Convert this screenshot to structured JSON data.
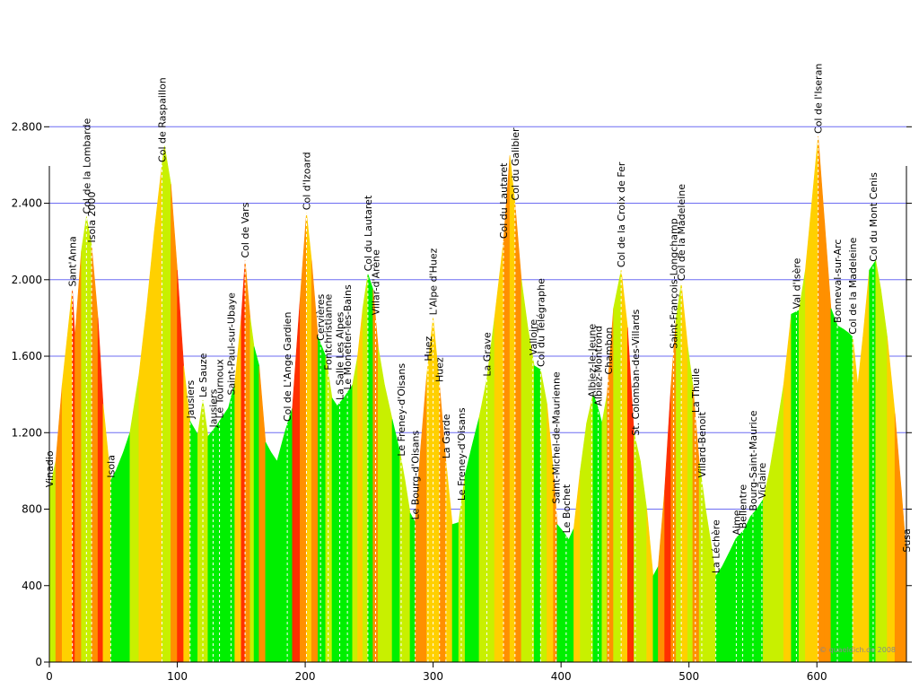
{
  "chart_data": {
    "type": "area",
    "xlim": [
      0,
      670
    ],
    "ylim": [
      0,
      2900
    ],
    "y_ticks": [
      0,
      400,
      800,
      1200,
      1600,
      2000,
      2400,
      2800
    ],
    "y_tick_labels": [
      "0",
      "400",
      "800",
      "1.200",
      "1.600",
      "2.000",
      "2.400",
      "2.800"
    ],
    "x_ticks": [
      0,
      100,
      200,
      300,
      400,
      500,
      600
    ],
    "x_tick_labels": [
      "0",
      "100",
      "200",
      "300",
      "400",
      "500",
      "600"
    ],
    "grid": "horizontal",
    "profile": [
      [
        0,
        900
      ],
      [
        5,
        1050
      ],
      [
        10,
        1450
      ],
      [
        14,
        1700
      ],
      [
        18,
        1950
      ],
      [
        20,
        1700
      ],
      [
        25,
        2150
      ],
      [
        29,
        2330
      ],
      [
        33,
        2180
      ],
      [
        38,
        1800
      ],
      [
        42,
        1350
      ],
      [
        48,
        950
      ],
      [
        52,
        1000
      ],
      [
        58,
        1100
      ],
      [
        63,
        1200
      ],
      [
        70,
        1500
      ],
      [
        76,
        1850
      ],
      [
        82,
        2250
      ],
      [
        88,
        2600
      ],
      [
        90,
        2700
      ],
      [
        95,
        2500
      ],
      [
        100,
        2050
      ],
      [
        105,
        1550
      ],
      [
        110,
        1260
      ],
      [
        116,
        1190
      ],
      [
        120,
        1370
      ],
      [
        124,
        1180
      ],
      [
        130,
        1230
      ],
      [
        135,
        1280
      ],
      [
        140,
        1330
      ],
      [
        145,
        1460
      ],
      [
        150,
        1800
      ],
      [
        153,
        2100
      ],
      [
        157,
        1800
      ],
      [
        160,
        1650
      ],
      [
        164,
        1550
      ],
      [
        169,
        1150
      ],
      [
        173,
        1100
      ],
      [
        178,
        1050
      ],
      [
        184,
        1200
      ],
      [
        190,
        1330
      ],
      [
        196,
        1900
      ],
      [
        201,
        2350
      ],
      [
        205,
        2100
      ],
      [
        210,
        1700
      ],
      [
        216,
        1600
      ],
      [
        221,
        1380
      ],
      [
        225,
        1340
      ],
      [
        230,
        1380
      ],
      [
        237,
        1450
      ],
      [
        241,
        1600
      ],
      [
        245,
        1850
      ],
      [
        249,
        2030
      ],
      [
        253,
        1950
      ],
      [
        257,
        1650
      ],
      [
        262,
        1450
      ],
      [
        268,
        1270
      ],
      [
        274,
        1100
      ],
      [
        278,
        950
      ],
      [
        282,
        780
      ],
      [
        286,
        730
      ],
      [
        290,
        1100
      ],
      [
        295,
        1500
      ],
      [
        300,
        1800
      ],
      [
        305,
        1450
      ],
      [
        310,
        1050
      ],
      [
        315,
        720
      ],
      [
        320,
        730
      ],
      [
        325,
        980
      ],
      [
        330,
        1120
      ],
      [
        336,
        1280
      ],
      [
        342,
        1480
      ],
      [
        348,
        1800
      ],
      [
        355,
        2200
      ],
      [
        360,
        2650
      ],
      [
        364,
        2400
      ],
      [
        369,
        2000
      ],
      [
        374,
        1750
      ],
      [
        379,
        1550
      ],
      [
        384,
        1530
      ],
      [
        389,
        1350
      ],
      [
        394,
        1000
      ],
      [
        397,
        720
      ],
      [
        402,
        680
      ],
      [
        406,
        640
      ],
      [
        410,
        700
      ],
      [
        415,
        1000
      ],
      [
        420,
        1250
      ],
      [
        425,
        1400
      ],
      [
        428,
        1350
      ],
      [
        432,
        1250
      ],
      [
        436,
        1400
      ],
      [
        441,
        1850
      ],
      [
        447,
        2050
      ],
      [
        452,
        1750
      ],
      [
        457,
        1200
      ],
      [
        462,
        1050
      ],
      [
        467,
        800
      ],
      [
        472,
        450
      ],
      [
        476,
        500
      ],
      [
        481,
        900
      ],
      [
        486,
        1450
      ],
      [
        490,
        1800
      ],
      [
        494,
        1980
      ],
      [
        499,
        1650
      ],
      [
        503,
        1450
      ],
      [
        508,
        1050
      ],
      [
        513,
        800
      ],
      [
        517,
        630
      ],
      [
        521,
        450
      ],
      [
        526,
        500
      ],
      [
        532,
        580
      ],
      [
        537,
        650
      ],
      [
        543,
        690
      ],
      [
        548,
        760
      ],
      [
        553,
        800
      ],
      [
        558,
        850
      ],
      [
        563,
        1000
      ],
      [
        568,
        1200
      ],
      [
        574,
        1450
      ],
      [
        580,
        1820
      ],
      [
        586,
        1840
      ],
      [
        591,
        2050
      ],
      [
        596,
        2400
      ],
      [
        601,
        2750
      ],
      [
        606,
        2300
      ],
      [
        611,
        1850
      ],
      [
        616,
        1760
      ],
      [
        621,
        1740
      ],
      [
        625,
        1720
      ],
      [
        628,
        1700
      ],
      [
        632,
        1450
      ],
      [
        636,
        1700
      ],
      [
        641,
        2050
      ],
      [
        646,
        2100
      ],
      [
        650,
        1950
      ],
      [
        655,
        1700
      ],
      [
        661,
        1300
      ],
      [
        666,
        900
      ],
      [
        670,
        560
      ]
    ],
    "places": [
      {
        "km": 0,
        "label": "Vinadio"
      },
      {
        "km": 18,
        "label": "Sant'Anna"
      },
      {
        "km": 29,
        "label": "Col de la Lombarde"
      },
      {
        "km": 33,
        "label": "Isola 2000"
      },
      {
        "km": 48,
        "label": "Isola"
      },
      {
        "km": 88,
        "label": "Col de Raspaillon"
      },
      {
        "km": 110,
        "label": "Jausiers"
      },
      {
        "km": 120,
        "label": "Le Sauze"
      },
      {
        "km": 128,
        "label": "Jausiers"
      },
      {
        "km": 133,
        "label": "Le Tournoux"
      },
      {
        "km": 142,
        "label": "Saint-Paul-sur-Ubaye"
      },
      {
        "km": 153,
        "label": "Col de Vars"
      },
      {
        "km": 186,
        "label": "Col de L'Ange Gardien"
      },
      {
        "km": 201,
        "label": "Col d'Izoard"
      },
      {
        "km": 212,
        "label": "Cervières"
      },
      {
        "km": 218,
        "label": "Fontchristianne"
      },
      {
        "km": 227,
        "label": "La Salle Les Alpes"
      },
      {
        "km": 233,
        "label": "Le Monetier-les-Bains"
      },
      {
        "km": 249,
        "label": "Col du Lautaret"
      },
      {
        "km": 255,
        "label": "Villar-d'Arène"
      },
      {
        "km": 275,
        "label": "Le Freney-d'Oisans"
      },
      {
        "km": 286,
        "label": "Le Bourg-d'Oisans"
      },
      {
        "km": 296,
        "label": "Huez"
      },
      {
        "km": 300,
        "label": "L'Alpe d'Huez"
      },
      {
        "km": 305,
        "label": "Huez"
      },
      {
        "km": 310,
        "label": "La Garde"
      },
      {
        "km": 322,
        "label": "Le Freney-d'Oisans"
      },
      {
        "km": 342,
        "label": "La Grave"
      },
      {
        "km": 355,
        "label": "Col du Lautaret"
      },
      {
        "km": 364,
        "label": "Col du Galibier"
      },
      {
        "km": 378,
        "label": "Valloire"
      },
      {
        "km": 384,
        "label": "Col du Télégraphe"
      },
      {
        "km": 396,
        "label": "Saint-Michel-de-Maurienne"
      },
      {
        "km": 404,
        "label": "Le Bochet"
      },
      {
        "km": 424,
        "label": "Albiez-le-Jeune"
      },
      {
        "km": 429,
        "label": "Albiez-Montrond"
      },
      {
        "km": 437,
        "label": "Chambon"
      },
      {
        "km": 447,
        "label": "Col de la Croix de Fer"
      },
      {
        "km": 458,
        "label": "St. Colomban-des-Villards"
      },
      {
        "km": 488,
        "label": "Saint-François-Longchamp"
      },
      {
        "km": 494,
        "label": "Col de la Madeleine"
      },
      {
        "km": 505,
        "label": "La Thuile"
      },
      {
        "km": 510,
        "label": "Villard-Benoit"
      },
      {
        "km": 521,
        "label": "La Léchère"
      },
      {
        "km": 537,
        "label": "Aime"
      },
      {
        "km": 542,
        "label": "Bellentre"
      },
      {
        "km": 550,
        "label": "Bourg-Saint-Maurice"
      },
      {
        "km": 557,
        "label": "Viclaire"
      },
      {
        "km": 584,
        "label": "Val d'Isère"
      },
      {
        "km": 601,
        "label": "Col de l'Iseran"
      },
      {
        "km": 616,
        "label": "Bonneval-sur-Arc"
      },
      {
        "km": 628,
        "label": "Col de la Madeleine"
      },
      {
        "km": 644,
        "label": "Col du Mont Cenis"
      },
      {
        "km": 670,
        "label": "Susa"
      }
    ],
    "palette": {
      "grid": "#6d6df2",
      "axis": "#000000",
      "flat": "#00f000",
      "moderate": "#c8f000",
      "steep": "#ffd000",
      "very_steep": "#ff9000",
      "extreme": "#ff3000",
      "marker": "#ffffff"
    }
  },
  "credit": "© quaeldich.de 2008"
}
